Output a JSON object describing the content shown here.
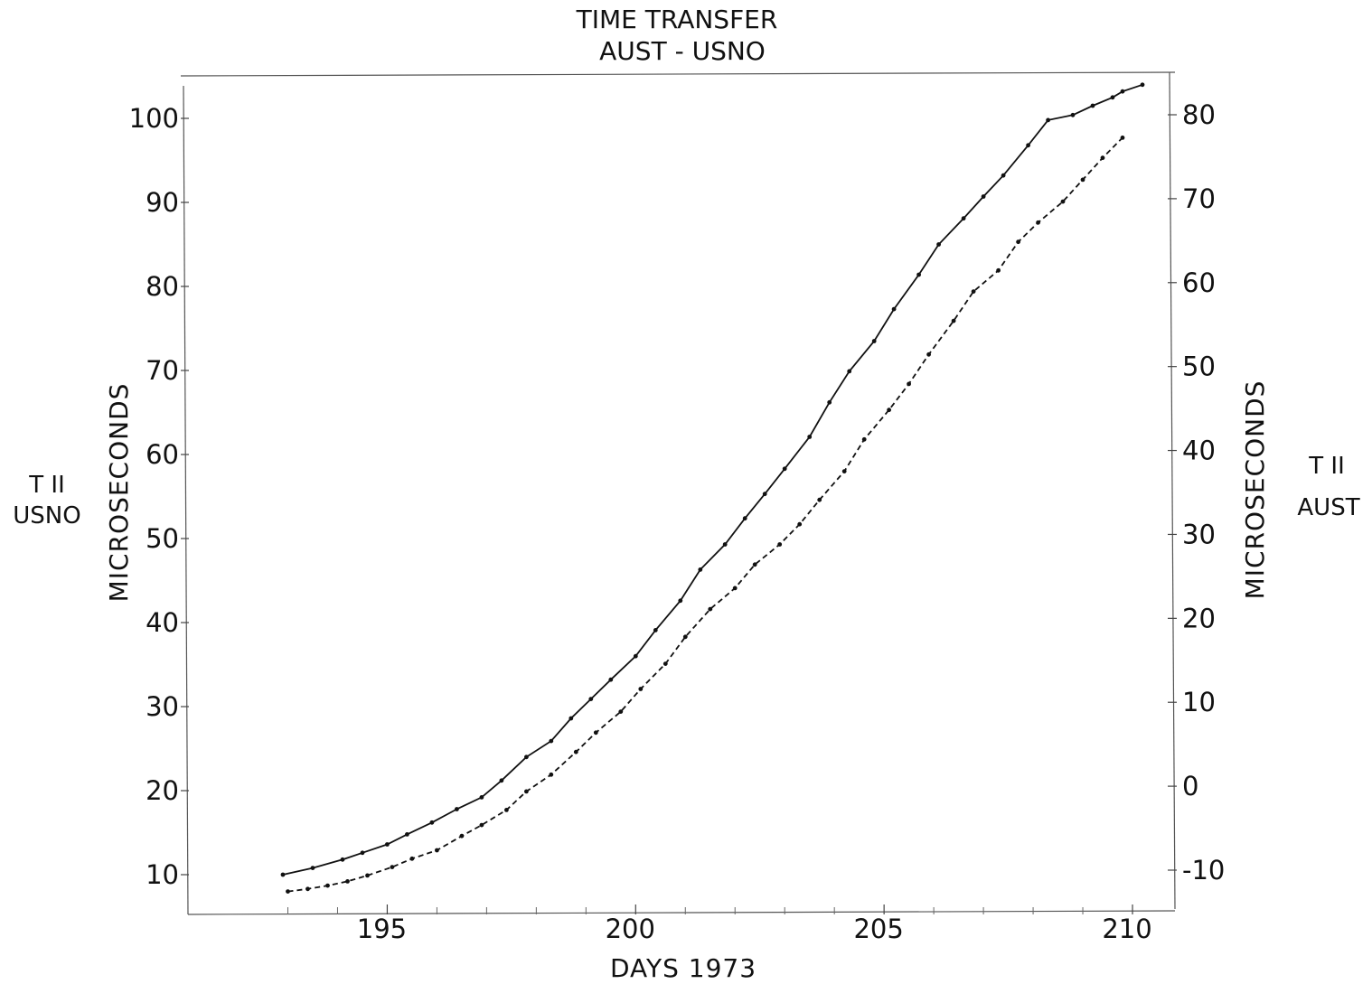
{
  "chart_data": {
    "type": "line",
    "title": "TIME TRANSFER",
    "subtitle": "AUST - USNO",
    "xlabel": "DAYS 1973",
    "ylabel_left": "MICROSECONDS",
    "ylabel_right": "MICROSECONDS",
    "left_side_label": [
      "T II",
      "USNO"
    ],
    "right_side_label": [
      "T II",
      "AUST"
    ],
    "xlim": [
      190.7,
      210.5
    ],
    "ylim_left": [
      5,
      105
    ],
    "ylim_right": [
      -15,
      85
    ],
    "x_ticks": [
      "195",
      "200",
      "205",
      "210"
    ],
    "y_ticks_left": [
      "10",
      "20",
      "30",
      "40",
      "50",
      "60",
      "70",
      "80",
      "90",
      "100"
    ],
    "y_ticks_right": [
      "-10",
      "0",
      "10",
      "20",
      "30",
      "40",
      "50",
      "60",
      "70",
      "80"
    ],
    "grid": false,
    "series": [
      {
        "style": "solid",
        "axis": "left",
        "x": [
          192.9,
          193.5,
          194.1,
          194.5,
          195.0,
          195.4,
          195.9,
          196.4,
          196.9,
          197.3,
          197.8,
          198.3,
          198.7,
          199.1,
          199.5,
          200.0,
          200.4,
          200.9,
          201.3,
          201.8,
          202.2,
          202.6,
          203.0,
          203.5,
          203.9,
          204.3,
          204.8,
          205.2,
          205.7,
          206.1,
          206.6,
          207.0,
          207.4,
          207.9,
          208.3,
          208.8,
          209.2,
          209.6,
          209.8,
          210.2
        ],
        "y": [
          10,
          10.8,
          11.8,
          12.6,
          13.6,
          14.8,
          16.2,
          17.8,
          19.2,
          21.2,
          24,
          25.9,
          28.6,
          30.9,
          33.2,
          36,
          39.1,
          42.6,
          46.3,
          49.3,
          52.4,
          55.3,
          58.3,
          62.1,
          66.2,
          69.9,
          73.5,
          77.3,
          81.4,
          85,
          88.1,
          90.7,
          93.2,
          96.8,
          99.8,
          100.4,
          101.5,
          102.5,
          103.2,
          104
        ]
      },
      {
        "style": "dashed",
        "axis": "left",
        "x": [
          193.0,
          193.4,
          193.8,
          194.2,
          194.6,
          195.1,
          195.5,
          196.0,
          196.5,
          196.9,
          197.4,
          197.8,
          198.3,
          198.8,
          199.2,
          199.7,
          200.1,
          200.6,
          201.0,
          201.5,
          202.0,
          202.4,
          202.9,
          203.3,
          203.7,
          204.2,
          204.6,
          205.1,
          205.5,
          205.9,
          206.4,
          206.8,
          207.3,
          207.7,
          208.1,
          208.6,
          209.0,
          209.4,
          209.8
        ],
        "y": [
          8,
          8.3,
          8.7,
          9.2,
          9.9,
          10.9,
          11.9,
          12.9,
          14.6,
          15.9,
          17.7,
          19.9,
          21.9,
          24.6,
          26.9,
          29.4,
          32.1,
          35.1,
          38.3,
          41.6,
          44.1,
          46.9,
          49.3,
          51.7,
          54.6,
          58,
          61.8,
          65.3,
          68.4,
          71.9,
          75.9,
          79.4,
          81.9,
          85.3,
          87.6,
          90.1,
          92.7,
          95.3,
          97.7
        ]
      }
    ]
  }
}
